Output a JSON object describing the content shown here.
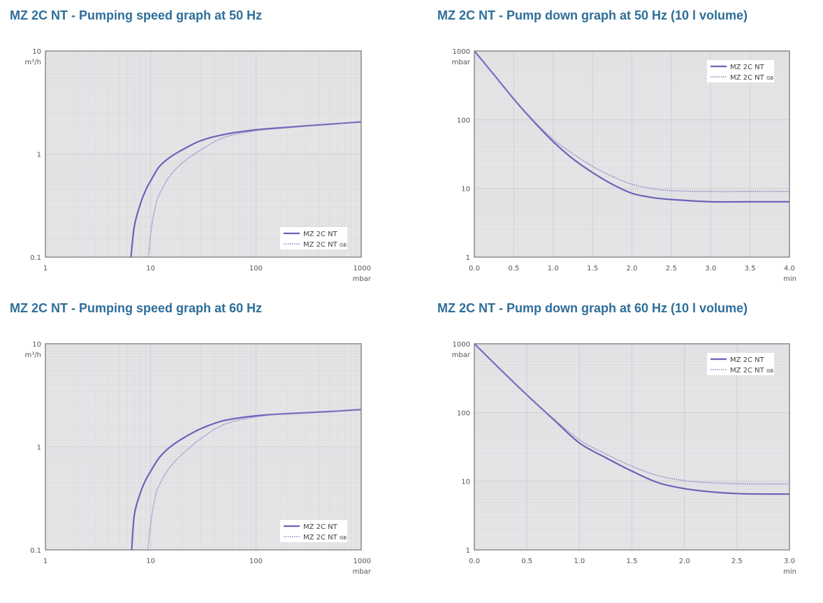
{
  "colors": {
    "title": "#2e6e9a",
    "plot_bg": "#e4e4e6",
    "grid_major": "#cfd0d4",
    "grid_minor": "#d9dadd",
    "frame": "#8a8a8a",
    "series": "#6a63b8",
    "series_gb": "#8a84c8"
  },
  "titles": {
    "tl": "MZ 2C NT - Pumping speed graph at 50 Hz",
    "tr": "MZ 2C NT - Pump down graph at 50 Hz (10 l volume)",
    "bl": "MZ 2C NT - Pumping speed graph at 60 Hz",
    "br": "MZ 2C NT - Pump down graph at 60 Hz (10 l volume)"
  },
  "legend": {
    "series1": "MZ 2C NT",
    "series2": "MZ 2C NT",
    "series2_sub": "GB"
  },
  "chart_data": [
    {
      "id": "tl",
      "type": "line",
      "title": "MZ 2C NT - Pumping speed graph at 50 Hz",
      "xlabel": "mbar",
      "ylabel": "m³/h",
      "xscale": "log",
      "yscale": "log",
      "xlim": [
        1,
        1000
      ],
      "ylim": [
        0.1,
        10
      ],
      "x_ticks": [
        "1",
        "10",
        "100",
        "1000"
      ],
      "y_ticks": [
        "0.1",
        "1",
        "10"
      ],
      "grid": true,
      "legend_position": "lower right",
      "series": [
        {
          "name": "MZ 2C NT",
          "style": "solid",
          "x": [
            6.5,
            7,
            8,
            9,
            10,
            12,
            15,
            20,
            30,
            50,
            100,
            200,
            500,
            1000
          ],
          "y": [
            0.1,
            0.2,
            0.33,
            0.45,
            0.55,
            0.75,
            0.92,
            1.1,
            1.35,
            1.55,
            1.72,
            1.82,
            1.95,
            2.05
          ]
        },
        {
          "name": "MZ 2C NT GB",
          "style": "dotted",
          "x": [
            9.5,
            10,
            11,
            12,
            15,
            20,
            30,
            50,
            100,
            200,
            500,
            1000
          ],
          "y": [
            0.1,
            0.17,
            0.3,
            0.4,
            0.6,
            0.82,
            1.1,
            1.45,
            1.68,
            1.8,
            1.95,
            2.05
          ]
        }
      ]
    },
    {
      "id": "tr",
      "type": "line",
      "title": "MZ 2C NT - Pump down graph at 50 Hz (10 l volume)",
      "xlabel": "min",
      "ylabel": "mbar",
      "xscale": "linear",
      "yscale": "log",
      "xlim": [
        0,
        4
      ],
      "ylim": [
        1,
        1000
      ],
      "x_ticks": [
        "0.0",
        "0.5",
        "1.0",
        "1.5",
        "2.0",
        "2.5",
        "3.0",
        "3.5",
        "4.0"
      ],
      "y_ticks": [
        "1",
        "10",
        "100",
        "1000"
      ],
      "grid": true,
      "legend_position": "upper right",
      "series": [
        {
          "name": "MZ 2C NT",
          "style": "solid",
          "x": [
            0,
            0.25,
            0.5,
            0.75,
            1.0,
            1.25,
            1.5,
            1.75,
            2.0,
            2.25,
            2.5,
            3.0,
            3.5,
            4.0
          ],
          "y": [
            1000,
            450,
            200,
            95,
            48,
            27,
            17,
            11.5,
            8.5,
            7.4,
            6.9,
            6.4,
            6.4,
            6.4
          ]
        },
        {
          "name": "MZ 2C NT GB",
          "style": "dotted",
          "x": [
            0,
            0.25,
            0.5,
            0.75,
            1.0,
            1.25,
            1.5,
            1.75,
            2.0,
            2.25,
            2.5,
            3.0,
            3.5,
            4.0
          ],
          "y": [
            1000,
            450,
            200,
            98,
            52,
            32,
            21,
            15,
            11.5,
            10,
            9.3,
            9.0,
            9.0,
            9.0
          ]
        }
      ]
    },
    {
      "id": "bl",
      "type": "line",
      "title": "MZ 2C NT - Pumping speed graph at 60 Hz",
      "xlabel": "mbar",
      "ylabel": "m³/h",
      "xscale": "log",
      "yscale": "log",
      "xlim": [
        1,
        1000
      ],
      "ylim": [
        0.1,
        10
      ],
      "x_ticks": [
        "1",
        "10",
        "100",
        "1000"
      ],
      "y_ticks": [
        "0.1",
        "1",
        "10"
      ],
      "grid": true,
      "legend_position": "lower right",
      "series": [
        {
          "name": "MZ 2C NT",
          "style": "solid",
          "x": [
            6.6,
            7,
            8,
            9,
            10,
            12,
            15,
            20,
            30,
            50,
            100,
            200,
            500,
            1000
          ],
          "y": [
            0.1,
            0.22,
            0.36,
            0.48,
            0.58,
            0.78,
            0.98,
            1.2,
            1.5,
            1.8,
            2.0,
            2.1,
            2.2,
            2.3
          ]
        },
        {
          "name": "MZ 2C NT GB",
          "style": "dotted",
          "x": [
            9.4,
            10,
            11,
            12,
            15,
            20,
            30,
            50,
            100,
            200,
            500,
            1000
          ],
          "y": [
            0.1,
            0.18,
            0.32,
            0.42,
            0.62,
            0.85,
            1.2,
            1.65,
            1.95,
            2.1,
            2.2,
            2.3
          ]
        }
      ]
    },
    {
      "id": "br",
      "type": "line",
      "title": "MZ 2C NT - Pump down graph at 60 Hz (10 l volume)",
      "xlabel": "min",
      "ylabel": "mbar",
      "xscale": "linear",
      "yscale": "log",
      "xlim": [
        0,
        3
      ],
      "ylim": [
        1,
        1000
      ],
      "x_ticks": [
        "0.0",
        "0.5",
        "1.0",
        "1.5",
        "2.0",
        "2.5",
        "3.0"
      ],
      "y_ticks": [
        "1",
        "10",
        "100",
        "1000"
      ],
      "grid": true,
      "legend_position": "upper right",
      "series": [
        {
          "name": "MZ 2C NT",
          "style": "solid",
          "x": [
            0,
            0.25,
            0.5,
            0.75,
            1.0,
            1.25,
            1.5,
            1.75,
            2.0,
            2.25,
            2.5,
            2.75,
            3.0
          ],
          "y": [
            1000,
            420,
            180,
            80,
            36,
            22,
            14,
            9.5,
            7.8,
            7.0,
            6.6,
            6.5,
            6.5
          ]
        },
        {
          "name": "MZ 2C NT GB",
          "style": "dotted",
          "x": [
            0,
            0.25,
            0.5,
            0.75,
            1.0,
            1.25,
            1.5,
            1.75,
            2.0,
            2.25,
            2.5,
            2.75,
            3.0
          ],
          "y": [
            1000,
            420,
            180,
            82,
            40,
            25,
            16.5,
            12,
            10.2,
            9.5,
            9.2,
            9.1,
            9.1
          ]
        }
      ]
    }
  ]
}
